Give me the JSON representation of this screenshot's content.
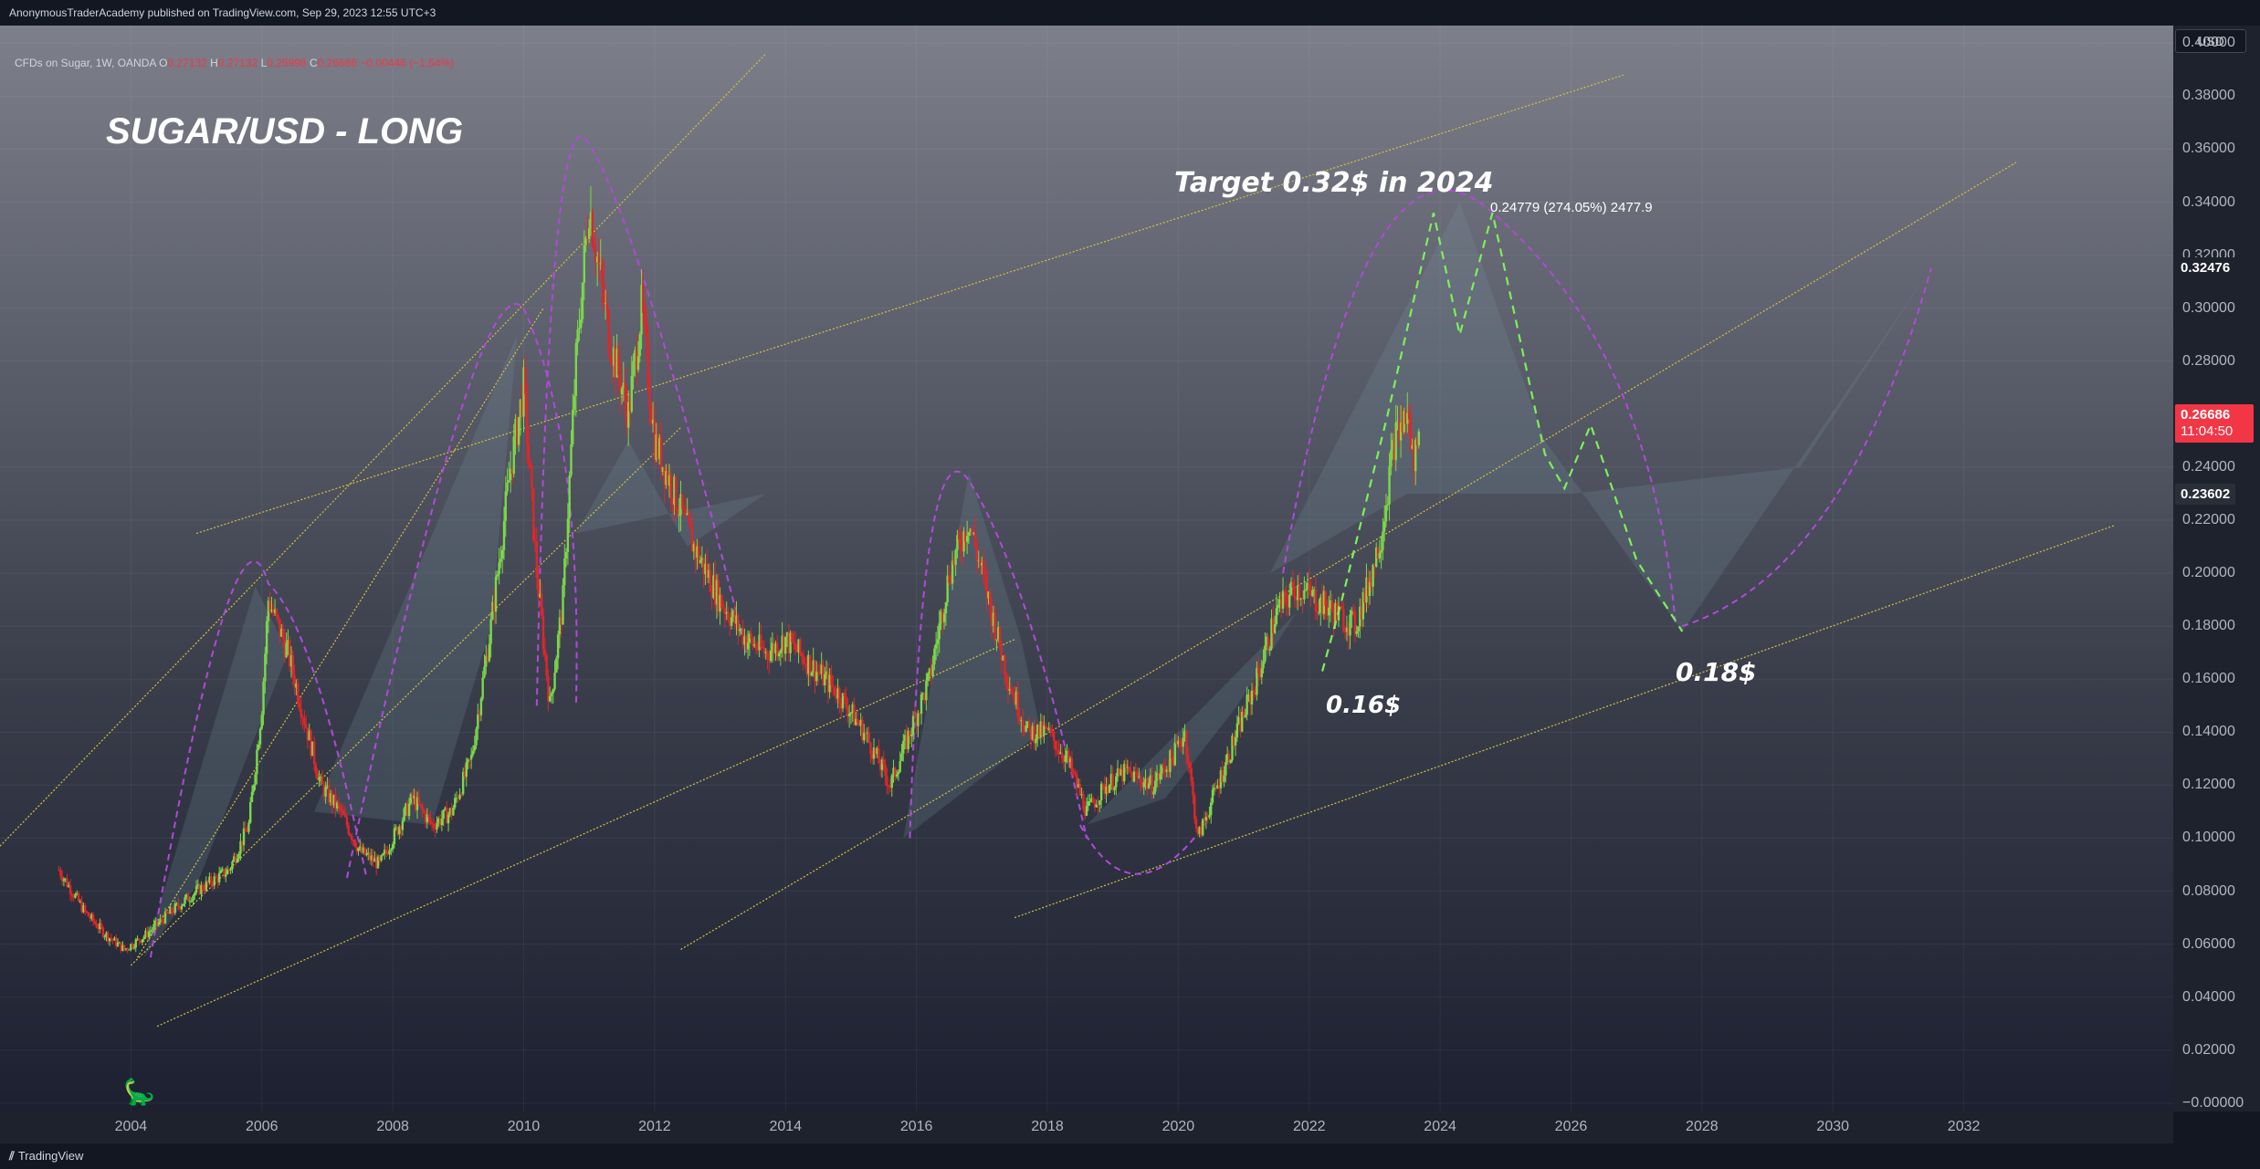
{
  "header": {
    "publisher_line": "AnonymousTraderAcademy published on TradingView.com, Sep 29, 2023 12:55 UTC+3"
  },
  "legend": {
    "symbol": "CFDs on Sugar, 1W, OANDA",
    "open_label": "O",
    "open": "0.27132",
    "high_label": "H",
    "high": "0.27132",
    "low_label": "L",
    "low": "0.25998",
    "close_label": "C",
    "close": "0.26686",
    "change": "−0.00446 (−1.64%)"
  },
  "price_scale": {
    "currency": "USD",
    "ticks": [
      "0.40000",
      "0.38000",
      "0.36000",
      "0.34000",
      "0.32000",
      "0.30000",
      "0.28000",
      "0.24000",
      "0.22000",
      "0.20000",
      "0.18000",
      "0.16000",
      "0.14000",
      "0.12000",
      "0.10000",
      "0.08000",
      "0.06000",
      "0.04000",
      "0.02000",
      "−0.00000"
    ],
    "tag_level_high": "0.32476",
    "tag_level_low": "0.23602",
    "current_price": "0.26686",
    "countdown": "11:04:50"
  },
  "time_scale": {
    "ticks": [
      "2004",
      "2006",
      "2008",
      "2010",
      "2012",
      "2014",
      "2016",
      "2018",
      "2020",
      "2022",
      "2024",
      "2026",
      "2028",
      "2030",
      "2032"
    ]
  },
  "annotations": {
    "title": "SUGAR/USD - LONG",
    "target": "Target 0.32$ in 2024",
    "target_icon": "checkered-flag-icon",
    "level_016": "0.16$",
    "level_018": "0.18$",
    "measure": "0.24779 (274.05%) 2477.9"
  },
  "footer": {
    "brand": "TradingView"
  },
  "colors": {
    "up": "#7cd84a",
    "down": "#e0262a",
    "trendline": "#d6c33d",
    "arc": "#b04ad9",
    "projection": "#7df05a",
    "current_tag": "#f23645"
  },
  "chart_data": {
    "type": "candlestick",
    "title": "SUGAR/USD - LONG",
    "xlabel": "",
    "ylabel": "",
    "xlim": [
      2002.0,
      2035.2
    ],
    "ylim": [
      -0.00315,
      0.40666
    ],
    "grid": true,
    "price_path": [
      [
        2002.9,
        0.088
      ],
      [
        2003.3,
        0.072
      ],
      [
        2003.6,
        0.064
      ],
      [
        2003.9,
        0.058
      ],
      [
        2004.2,
        0.063
      ],
      [
        2004.6,
        0.072
      ],
      [
        2005.0,
        0.08
      ],
      [
        2005.5,
        0.088
      ],
      [
        2005.8,
        0.105
      ],
      [
        2006.0,
        0.15
      ],
      [
        2006.1,
        0.19
      ],
      [
        2006.4,
        0.17
      ],
      [
        2006.7,
        0.14
      ],
      [
        2006.9,
        0.12
      ],
      [
        2007.2,
        0.11
      ],
      [
        2007.5,
        0.095
      ],
      [
        2007.8,
        0.09
      ],
      [
        2008.0,
        0.1
      ],
      [
        2008.3,
        0.115
      ],
      [
        2008.6,
        0.105
      ],
      [
        2008.9,
        0.11
      ],
      [
        2009.2,
        0.13
      ],
      [
        2009.5,
        0.18
      ],
      [
        2009.8,
        0.24
      ],
      [
        2010.0,
        0.27
      ],
      [
        2010.2,
        0.2
      ],
      [
        2010.4,
        0.15
      ],
      [
        2010.6,
        0.19
      ],
      [
        2010.8,
        0.28
      ],
      [
        2011.0,
        0.34
      ],
      [
        2011.3,
        0.29
      ],
      [
        2011.6,
        0.26
      ],
      [
        2011.8,
        0.3
      ],
      [
        2012.0,
        0.25
      ],
      [
        2012.3,
        0.23
      ],
      [
        2012.6,
        0.21
      ],
      [
        2013.0,
        0.19
      ],
      [
        2013.4,
        0.175
      ],
      [
        2013.7,
        0.17
      ],
      [
        2014.0,
        0.175
      ],
      [
        2014.4,
        0.165
      ],
      [
        2014.8,
        0.155
      ],
      [
        2015.2,
        0.14
      ],
      [
        2015.6,
        0.12
      ],
      [
        2015.9,
        0.14
      ],
      [
        2016.2,
        0.16
      ],
      [
        2016.5,
        0.2
      ],
      [
        2016.8,
        0.22
      ],
      [
        2017.1,
        0.19
      ],
      [
        2017.4,
        0.16
      ],
      [
        2017.7,
        0.14
      ],
      [
        2018.0,
        0.14
      ],
      [
        2018.3,
        0.13
      ],
      [
        2018.6,
        0.11
      ],
      [
        2018.9,
        0.12
      ],
      [
        2019.2,
        0.125
      ],
      [
        2019.6,
        0.12
      ],
      [
        2019.9,
        0.13
      ],
      [
        2020.1,
        0.14
      ],
      [
        2020.3,
        0.1
      ],
      [
        2020.6,
        0.12
      ],
      [
        2020.9,
        0.14
      ],
      [
        2021.2,
        0.16
      ],
      [
        2021.5,
        0.185
      ],
      [
        2021.8,
        0.195
      ],
      [
        2022.1,
        0.19
      ],
      [
        2022.4,
        0.185
      ],
      [
        2022.7,
        0.18
      ],
      [
        2022.9,
        0.195
      ],
      [
        2023.1,
        0.215
      ],
      [
        2023.3,
        0.25
      ],
      [
        2023.5,
        0.26
      ],
      [
        2023.6,
        0.24
      ],
      [
        2023.7,
        0.267
      ]
    ],
    "projection_path": [
      [
        2022.2,
        0.163
      ],
      [
        2022.5,
        0.19
      ],
      [
        2023.2,
        0.26
      ],
      [
        2023.9,
        0.336
      ],
      [
        2024.3,
        0.29
      ],
      [
        2024.8,
        0.336
      ],
      [
        2025.6,
        0.245
      ],
      [
        2025.9,
        0.232
      ],
      [
        2026.3,
        0.256
      ],
      [
        2027.0,
        0.205
      ],
      [
        2027.7,
        0.178
      ]
    ],
    "trendlines": [
      [
        [
          2004.1,
          0.055
        ],
        [
          2010.3,
          0.3
        ]
      ],
      [
        [
          2004.0,
          0.052
        ],
        [
          2012.4,
          0.255
        ]
      ],
      [
        [
          2004.4,
          0.029
        ],
        [
          2017.5,
          0.175
        ]
      ],
      [
        [
          2012.4,
          0.058
        ],
        [
          2032.8,
          0.355
        ]
      ],
      [
        [
          2017.5,
          0.07
        ],
        [
          2034.3,
          0.218
        ]
      ],
      [
        [
          2002.0,
          0.097
        ],
        [
          2013.7,
          0.396
        ]
      ],
      [
        [
          2005.0,
          0.215
        ],
        [
          2026.8,
          0.388
        ]
      ]
    ]
  }
}
